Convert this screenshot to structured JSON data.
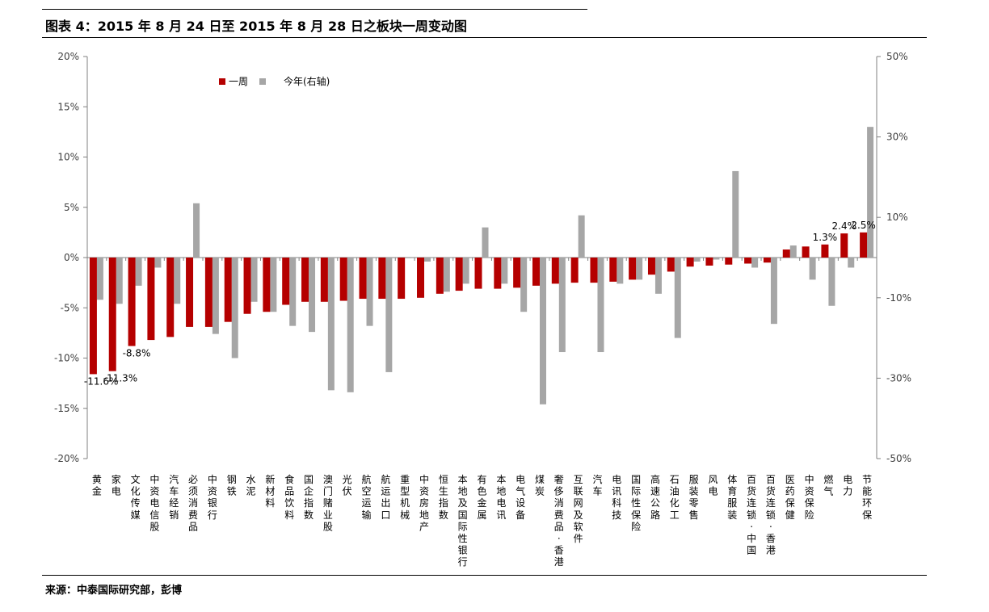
{
  "header": {
    "figure_title": "图表 4：2015 年 8 月 24 日至 2015 年 8 月 28 日之板块一周变动图"
  },
  "footer": {
    "source": "来源：中泰国际研究部，彭博"
  },
  "colors": {
    "week": "#b50000",
    "ytd": "#a6a6a6",
    "axis": "#808080"
  },
  "chart_data": {
    "type": "bar",
    "categories": [
      "黄金",
      "家电",
      "文化传媒",
      "中资电信股",
      "汽车经销",
      "必须消费品",
      "中资银行",
      "钢铁",
      "水泥",
      "新材料",
      "食品饮料",
      "国企指数",
      "澳门赌业股",
      "光伏",
      "航空运输",
      "航运出口",
      "重型机械",
      "中资房地产",
      "恒生指数",
      "本地及国际性银行",
      "有色金属",
      "本地电讯",
      "电气设备",
      "煤炭",
      "奢侈消费品-香港",
      "互联网及软件",
      "汽车",
      "电讯科技",
      "国际性保险",
      "高速公路",
      "石油化工",
      "服装零售",
      "风电",
      "体育服装",
      "百货连锁-中国",
      "百货连锁-香港",
      "医药保健",
      "中资保险",
      "燃气",
      "电力",
      "节能环保"
    ],
    "series": [
      {
        "name": "一周",
        "axis": "left",
        "values": [
          -11.6,
          -11.3,
          -8.8,
          -8.2,
          -7.9,
          -6.9,
          -6.9,
          -6.4,
          -5.6,
          -5.4,
          -4.7,
          -4.4,
          -4.4,
          -4.3,
          -4.1,
          -4.1,
          -4.1,
          -4.0,
          -3.6,
          -3.3,
          -3.1,
          -3.1,
          -3.0,
          -2.8,
          -2.6,
          -2.5,
          -2.5,
          -2.4,
          -2.2,
          -1.7,
          -1.4,
          -0.9,
          -0.8,
          -0.7,
          -0.6,
          -0.5,
          0.8,
          1.1,
          1.3,
          2.4,
          2.5
        ]
      },
      {
        "name": "今年(右轴)",
        "axis": "right",
        "values": [
          -10.5,
          -11.5,
          -7.0,
          -2.5,
          -11.5,
          13.5,
          -19.0,
          -25.0,
          -11.0,
          -13.5,
          -17.0,
          -18.5,
          -33.0,
          -33.5,
          -17.0,
          -28.5,
          0,
          -1.0,
          -8.5,
          -6.5,
          7.5,
          -6.5,
          -13.5,
          -36.5,
          -23.5,
          10.5,
          -23.5,
          -6.5,
          -5.5,
          -9.0,
          -20.0,
          -1.0,
          -0.5,
          21.5,
          -2.5,
          -16.5,
          3.0,
          -5.5,
          -12.0,
          -2.5,
          32.5
        ]
      }
    ],
    "data_labels": [
      {
        "category": "黄金",
        "text": "-11.6%"
      },
      {
        "category": "家电",
        "text": "-11.3%"
      },
      {
        "category": "文化传媒",
        "text": "-8.8%"
      },
      {
        "category": "燃气",
        "text": "1.3%"
      },
      {
        "category": "电力",
        "text": "2.4%"
      },
      {
        "category": "节能环保",
        "text": "2.5%"
      }
    ],
    "left_axis": {
      "ylim": [
        -20,
        20
      ],
      "ticks": [
        20,
        15,
        10,
        5,
        0,
        -5,
        -10,
        -15,
        -20
      ],
      "tick_labels": [
        "20%",
        "15%",
        "10%",
        "5%",
        "0%",
        "-5%",
        "-10%",
        "-15%",
        "-20%"
      ]
    },
    "right_axis": {
      "ylim": [
        -50,
        50
      ],
      "ticks": [
        50,
        30,
        10,
        -10,
        -30,
        -50
      ],
      "tick_labels": [
        "50%",
        "30%",
        "10%",
        "-10%",
        "-30%",
        "-50%"
      ]
    },
    "grid": false,
    "legend_position": "top-left"
  }
}
